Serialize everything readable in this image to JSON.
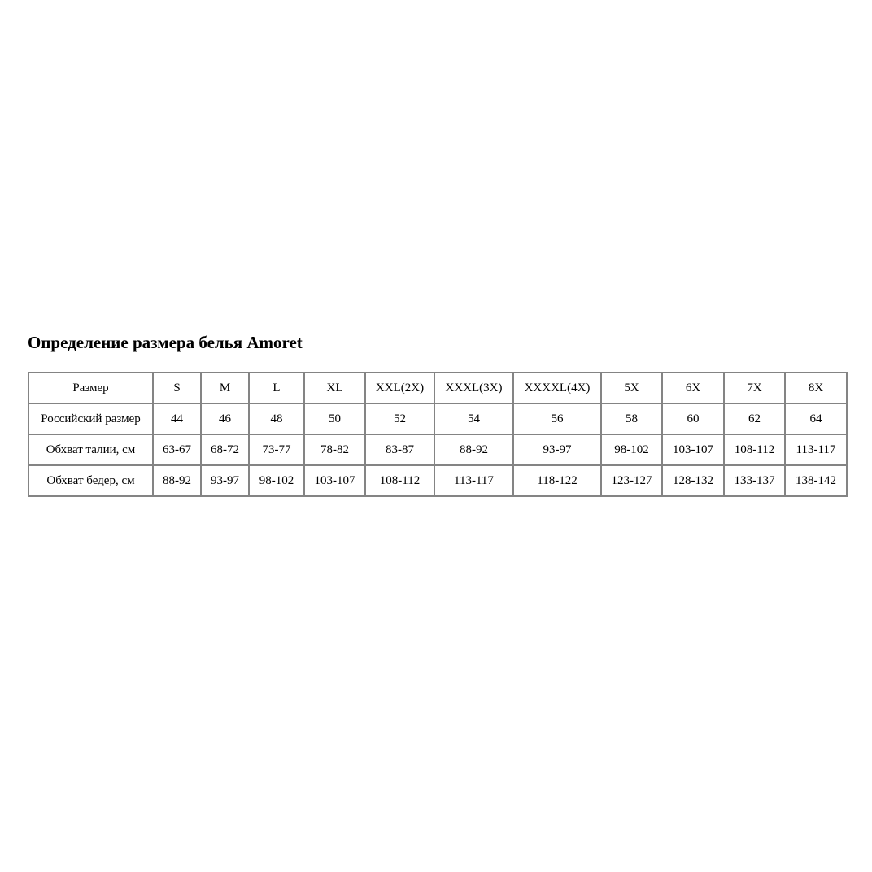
{
  "title": "Определение размера белья Amoret",
  "table": {
    "rows": [
      [
        "Размер",
        "S",
        "M",
        "L",
        "XL",
        "XXL(2X)",
        "XXXL(3X)",
        "XXXXL(4X)",
        "5X",
        "6X",
        "7X",
        "8X"
      ],
      [
        "Российский размер",
        "44",
        "46",
        "48",
        "50",
        "52",
        "54",
        "56",
        "58",
        "60",
        "62",
        "64"
      ],
      [
        "Обхват талии, см",
        "63-67",
        "68-72",
        "73-77",
        "78-82",
        "83-87",
        "88-92",
        "93-97",
        "98-102",
        "103-107",
        "108-112",
        "113-117"
      ],
      [
        "Обхват бедер, см",
        "88-92",
        "93-97",
        "98-102",
        "103-107",
        "108-112",
        "113-117",
        "118-122",
        "123-127",
        "128-132",
        "133-137",
        "138-142"
      ]
    ]
  },
  "colors": {
    "border": "#848484"
  }
}
